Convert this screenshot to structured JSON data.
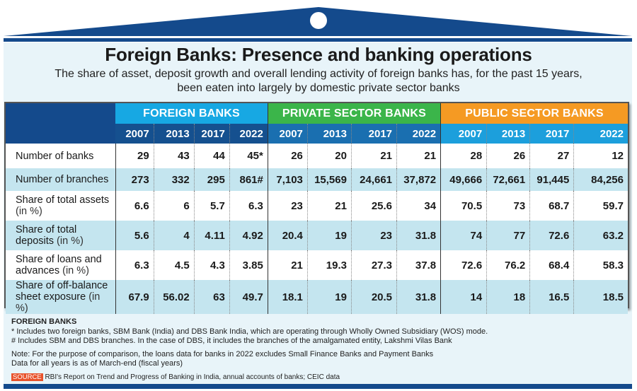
{
  "header": {
    "title": "Foreign Banks: Presence and banking operations",
    "subtitle_line1": "The share of asset, deposit growth and overall lending activity of foreign banks has, for the past 15 years,",
    "subtitle_line2": "been eaten into largely by domestic private sector banks"
  },
  "colors": {
    "brand_navy": "#144a8c",
    "foreign": "#17a8e3",
    "private": "#3bb54a",
    "public": "#f59a23",
    "row_alt": "#c4e5ef",
    "source_badge": "#e8522b"
  },
  "chart_data": {
    "type": "table",
    "title": "Foreign Banks: Presence and banking operations",
    "groups": [
      {
        "name": "FOREIGN BANKS",
        "years": [
          "2007",
          "2013",
          "2017",
          "2022"
        ]
      },
      {
        "name": "PRIVATE SECTOR BANKS",
        "years": [
          "2007",
          "2013",
          "2017",
          "2022"
        ]
      },
      {
        "name": "PUBLIC SECTOR BANKS",
        "years": [
          "2007",
          "2013",
          "2017",
          "2022"
        ]
      }
    ],
    "rows": [
      {
        "label": "Number of banks",
        "unit": "",
        "values": [
          "29",
          "43",
          "44",
          "45*",
          "26",
          "20",
          "21",
          "21",
          "28",
          "26",
          "27",
          "12"
        ]
      },
      {
        "label": "Number of branches",
        "unit": "",
        "values": [
          "273",
          "332",
          "295",
          "861#",
          "7,103",
          "15,569",
          "24,661",
          "37,872",
          "49,666",
          "72,661",
          "91,445",
          "84,256"
        ]
      },
      {
        "label": "Share of total assets",
        "unit": "(in %)",
        "values": [
          "6.6",
          "6",
          "5.7",
          "6.3",
          "23",
          "21",
          "25.6",
          "34",
          "70.5",
          "73",
          "68.7",
          "59.7"
        ]
      },
      {
        "label": "Share of total deposits",
        "unit": "(in %)",
        "values": [
          "5.6",
          "4",
          "4.11",
          "4.92",
          "20.4",
          "19",
          "23",
          "31.8",
          "74",
          "77",
          "72.6",
          "63.2"
        ]
      },
      {
        "label": "Share of loans and advances",
        "unit": "(in %)",
        "values": [
          "6.3",
          "4.5",
          "4.3",
          "3.85",
          "21",
          "19.3",
          "27.3",
          "37.8",
          "72.6",
          "76.2",
          "68.4",
          "58.3"
        ]
      },
      {
        "label": "Share of off-balance sheet exposure",
        "unit": "(in %)",
        "values": [
          "67.9",
          "56.02",
          "63",
          "49.7",
          "18.1",
          "19",
          "20.5",
          "31.8",
          "14",
          "18",
          "16.5",
          "18.5"
        ]
      }
    ]
  },
  "table": {
    "row_labels": [
      {
        "a": "Number of banks",
        "b": ""
      },
      {
        "a": "Number of branches",
        "b": ""
      },
      {
        "a": "Share of total assets",
        "b": "(in %)"
      },
      {
        "a": "Share of total",
        "b": "deposits",
        "u": "(in %)"
      },
      {
        "a": "Share of loans and",
        "b": "advances",
        "u": "(in %)"
      },
      {
        "a": "Share of off-balance",
        "b": "sheet exposure",
        "u": "(in %)"
      }
    ]
  },
  "notes": {
    "heading": "FOREIGN BANKS",
    "star": "* Includes two foreign banks, SBM Bank (India) and DBS Bank India, which are operating through Wholly Owned Subsidiary (WOS) mode.",
    "hash": "# Includes SBM and DBS branches. In the case of DBS, it includes the branches of the amalgamated entity, Lakshmi Vilas Bank",
    "note1": "Note: For the purpose of comparison, the loans data for banks in 2022 excludes Small Finance Banks and Payment Banks",
    "note2": "Data for all years is as of March-end (fiscal years)",
    "source_label": "SOURCE",
    "source_text": "RBI's Report on Trend and Progress of Banking in India, annual accounts of banks; CEIC data"
  }
}
